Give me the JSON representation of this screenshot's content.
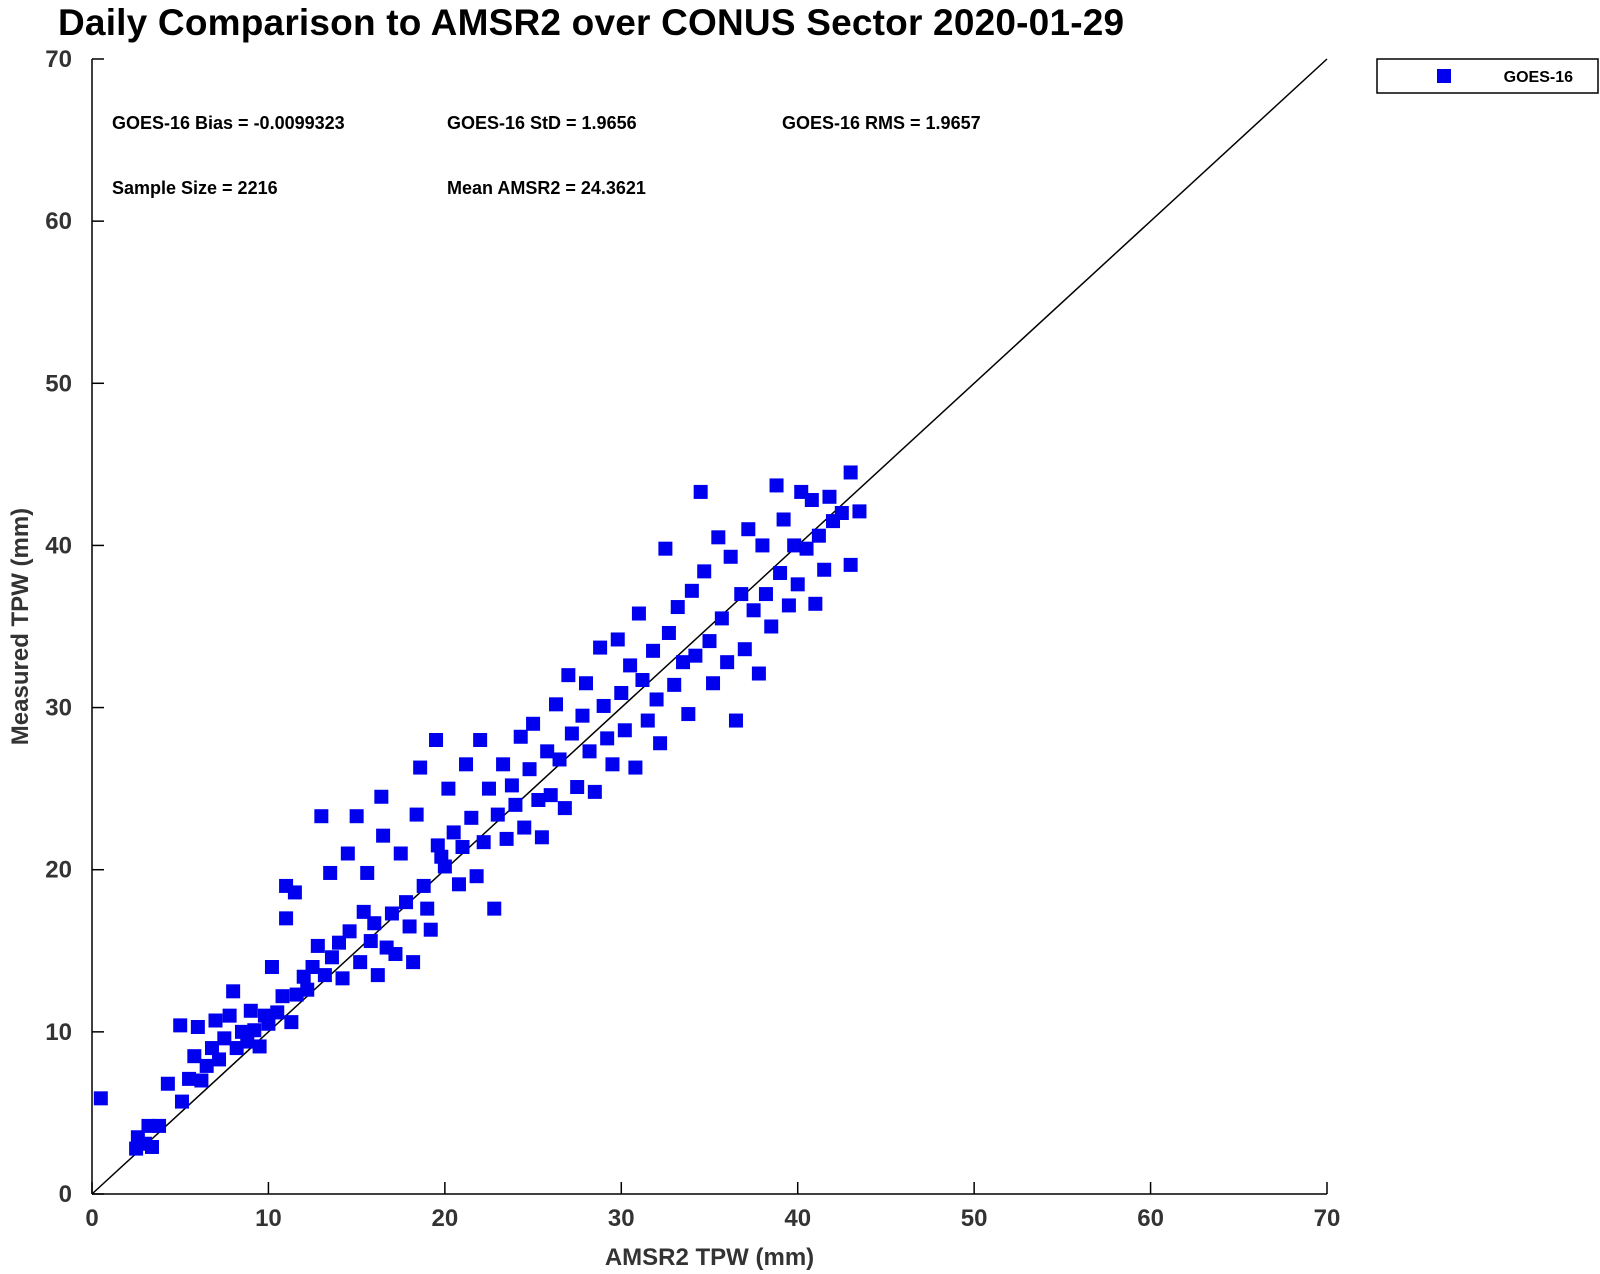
{
  "chart_data": {
    "type": "scatter",
    "title": "Daily Comparison to AMSR2 over CONUS Sector 2020-01-29",
    "xlabel": "AMSR2 TPW (mm)",
    "ylabel": "Measured TPW (mm)",
    "xlim": [
      0,
      70
    ],
    "ylim": [
      0,
      70
    ],
    "xticks": [
      "0",
      "10",
      "20",
      "30",
      "40",
      "50",
      "60",
      "70"
    ],
    "yticks": [
      "0",
      "10",
      "20",
      "30",
      "40",
      "50",
      "60",
      "70"
    ],
    "grid": false,
    "legend": {
      "placement": "top-right, outside plot",
      "entries": [
        "GOES-16"
      ]
    },
    "reference_line": {
      "type": "one-to-one",
      "from": [
        0,
        0
      ],
      "to": [
        70,
        70
      ],
      "color": "#000000"
    },
    "stats": [
      "GOES-16 Bias = -0.0099323",
      "GOES-16 StD = 1.9656",
      "GOES-16 RMS = 1.9657",
      "Sample Size = 2216",
      "Mean AMSR2 = 24.3621"
    ],
    "series": [
      {
        "name": "GOES-16",
        "color": "#0000ee",
        "marker": "square",
        "points": [
          [
            0.5,
            5.9
          ],
          [
            2.5,
            2.8
          ],
          [
            2.6,
            3.5
          ],
          [
            3.0,
            3.1
          ],
          [
            3.2,
            4.2
          ],
          [
            3.4,
            2.9
          ],
          [
            3.8,
            4.2
          ],
          [
            4.3,
            6.8
          ],
          [
            5.0,
            10.4
          ],
          [
            5.1,
            5.7
          ],
          [
            5.5,
            7.1
          ],
          [
            5.8,
            8.5
          ],
          [
            6.0,
            10.3
          ],
          [
            6.2,
            7.0
          ],
          [
            6.5,
            7.9
          ],
          [
            6.8,
            9.0
          ],
          [
            7.0,
            10.7
          ],
          [
            7.2,
            8.3
          ],
          [
            7.5,
            9.6
          ],
          [
            7.8,
            11.0
          ],
          [
            8.0,
            12.5
          ],
          [
            8.2,
            9.0
          ],
          [
            8.5,
            10.0
          ],
          [
            8.8,
            9.4
          ],
          [
            9.0,
            11.3
          ],
          [
            9.2,
            10.1
          ],
          [
            9.5,
            9.1
          ],
          [
            9.8,
            11.0
          ],
          [
            10.0,
            10.5
          ],
          [
            10.2,
            14.0
          ],
          [
            10.5,
            11.2
          ],
          [
            10.8,
            12.2
          ],
          [
            11.0,
            19.0
          ],
          [
            11.0,
            17.0
          ],
          [
            11.3,
            10.6
          ],
          [
            11.5,
            18.6
          ],
          [
            11.6,
            12.3
          ],
          [
            12.0,
            13.4
          ],
          [
            12.2,
            12.6
          ],
          [
            12.5,
            14.0
          ],
          [
            12.8,
            15.3
          ],
          [
            13.0,
            23.3
          ],
          [
            13.2,
            13.5
          ],
          [
            13.5,
            19.8
          ],
          [
            13.6,
            14.6
          ],
          [
            14.0,
            15.5
          ],
          [
            14.2,
            13.3
          ],
          [
            14.5,
            21.0
          ],
          [
            14.6,
            16.2
          ],
          [
            15.0,
            23.3
          ],
          [
            15.2,
            14.3
          ],
          [
            15.4,
            17.4
          ],
          [
            15.6,
            19.8
          ],
          [
            15.8,
            15.6
          ],
          [
            16.0,
            16.7
          ],
          [
            16.2,
            13.5
          ],
          [
            16.4,
            24.5
          ],
          [
            16.5,
            22.1
          ],
          [
            16.7,
            15.2
          ],
          [
            17.0,
            17.3
          ],
          [
            17.2,
            14.8
          ],
          [
            17.5,
            21.0
          ],
          [
            17.8,
            18.0
          ],
          [
            18.0,
            16.5
          ],
          [
            18.2,
            14.3
          ],
          [
            18.4,
            23.4
          ],
          [
            18.6,
            26.3
          ],
          [
            18.8,
            19.0
          ],
          [
            19.0,
            17.6
          ],
          [
            19.2,
            16.3
          ],
          [
            19.5,
            28.0
          ],
          [
            19.6,
            21.5
          ],
          [
            19.8,
            20.8
          ],
          [
            20.0,
            20.2
          ],
          [
            20.2,
            25.0
          ],
          [
            20.5,
            22.3
          ],
          [
            20.8,
            19.1
          ],
          [
            21.0,
            21.4
          ],
          [
            21.2,
            26.5
          ],
          [
            21.5,
            23.2
          ],
          [
            21.8,
            19.6
          ],
          [
            22.0,
            28.0
          ],
          [
            22.2,
            21.7
          ],
          [
            22.5,
            25.0
          ],
          [
            22.8,
            17.6
          ],
          [
            23.0,
            23.4
          ],
          [
            23.3,
            26.5
          ],
          [
            23.5,
            21.9
          ],
          [
            23.8,
            25.2
          ],
          [
            24.0,
            24.0
          ],
          [
            24.3,
            28.2
          ],
          [
            24.5,
            22.6
          ],
          [
            24.8,
            26.2
          ],
          [
            25.0,
            29.0
          ],
          [
            25.3,
            24.3
          ],
          [
            25.5,
            22.0
          ],
          [
            25.8,
            27.3
          ],
          [
            26.0,
            24.6
          ],
          [
            26.3,
            30.2
          ],
          [
            26.5,
            26.8
          ],
          [
            26.8,
            23.8
          ],
          [
            27.0,
            32.0
          ],
          [
            27.2,
            28.4
          ],
          [
            27.5,
            25.1
          ],
          [
            27.8,
            29.5
          ],
          [
            28.0,
            31.5
          ],
          [
            28.2,
            27.3
          ],
          [
            28.5,
            24.8
          ],
          [
            28.8,
            33.7
          ],
          [
            29.0,
            30.1
          ],
          [
            29.2,
            28.1
          ],
          [
            29.5,
            26.5
          ],
          [
            29.8,
            34.2
          ],
          [
            30.0,
            30.9
          ],
          [
            30.2,
            28.6
          ],
          [
            30.5,
            32.6
          ],
          [
            30.8,
            26.3
          ],
          [
            31.0,
            35.8
          ],
          [
            31.2,
            31.7
          ],
          [
            31.5,
            29.2
          ],
          [
            31.8,
            33.5
          ],
          [
            32.0,
            30.5
          ],
          [
            32.2,
            27.8
          ],
          [
            32.5,
            39.8
          ],
          [
            32.7,
            34.6
          ],
          [
            33.0,
            31.4
          ],
          [
            33.2,
            36.2
          ],
          [
            33.5,
            32.8
          ],
          [
            33.8,
            29.6
          ],
          [
            34.0,
            37.2
          ],
          [
            34.2,
            33.2
          ],
          [
            34.5,
            43.3
          ],
          [
            34.7,
            38.4
          ],
          [
            35.0,
            34.1
          ],
          [
            35.2,
            31.5
          ],
          [
            35.5,
            40.5
          ],
          [
            35.7,
            35.5
          ],
          [
            36.0,
            32.8
          ],
          [
            36.2,
            39.3
          ],
          [
            36.5,
            29.2
          ],
          [
            36.8,
            37.0
          ],
          [
            37.0,
            33.6
          ],
          [
            37.2,
            41.0
          ],
          [
            37.5,
            36.0
          ],
          [
            37.8,
            32.1
          ],
          [
            38.0,
            40.0
          ],
          [
            38.2,
            37.0
          ],
          [
            38.5,
            35.0
          ],
          [
            38.8,
            43.7
          ],
          [
            39.0,
            38.3
          ],
          [
            39.2,
            41.6
          ],
          [
            39.5,
            36.3
          ],
          [
            39.8,
            40.0
          ],
          [
            40.0,
            37.6
          ],
          [
            40.2,
            43.3
          ],
          [
            40.5,
            39.8
          ],
          [
            40.8,
            42.8
          ],
          [
            41.0,
            36.4
          ],
          [
            41.2,
            40.6
          ],
          [
            41.5,
            38.5
          ],
          [
            41.8,
            43.0
          ],
          [
            42.0,
            41.5
          ],
          [
            42.5,
            42.0
          ],
          [
            43.0,
            44.5
          ],
          [
            43.0,
            38.8
          ],
          [
            43.5,
            42.1
          ]
        ]
      }
    ]
  }
}
